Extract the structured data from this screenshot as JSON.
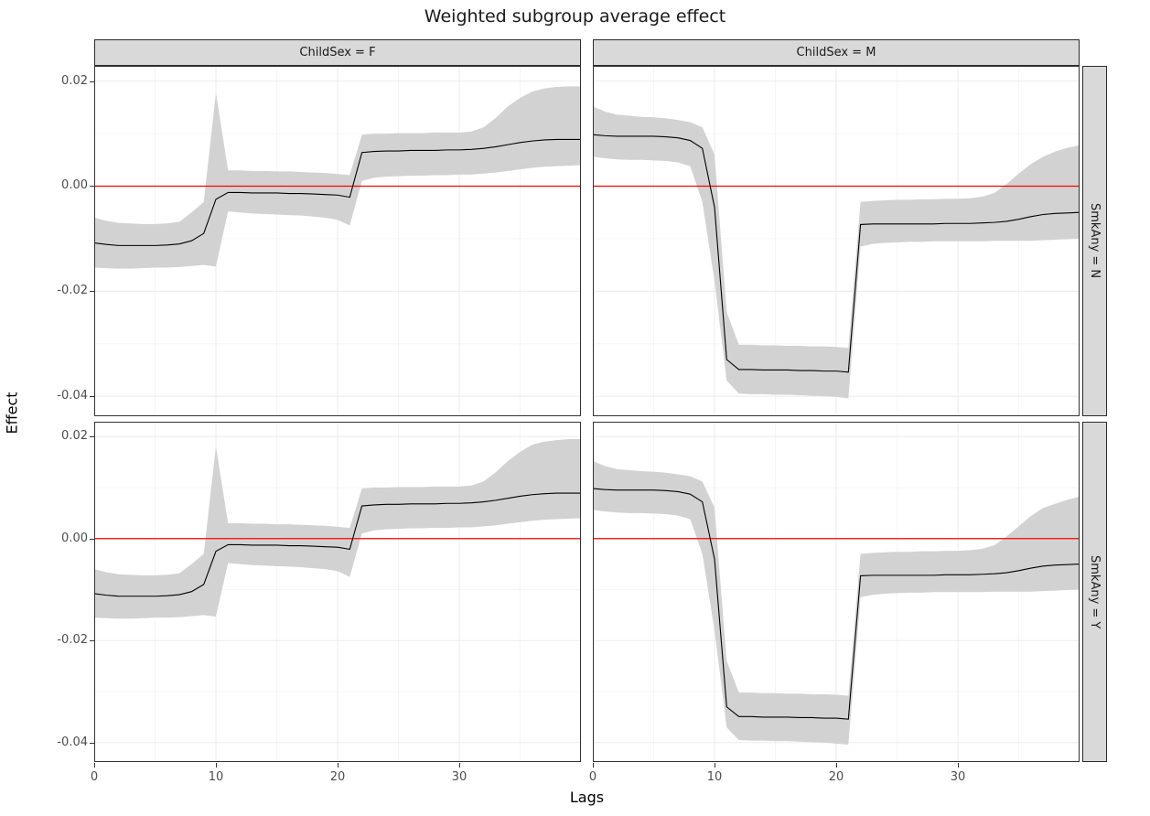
{
  "chart_data": {
    "type": "area",
    "title": "Weighted subgroup average effect",
    "xlabel": "Lags",
    "ylabel": "Effect",
    "xlim": [
      0,
      40
    ],
    "ylim": [
      -0.0438,
      0.0229
    ],
    "x_tick_values": [
      0,
      10,
      20,
      30
    ],
    "x_tick_labels": [
      "0",
      "10",
      "20",
      "30"
    ],
    "y_tick_values": [
      0.02,
      0.0,
      -0.02,
      -0.04
    ],
    "y_tick_labels": [
      "0.02",
      "0.00",
      "-0.02",
      "-0.04"
    ],
    "grid_minor_x": [
      5,
      15,
      25,
      35
    ],
    "grid_minor_y": [
      0.01,
      -0.01,
      -0.03
    ],
    "grid_on": true,
    "ref_line_y": 0,
    "colors": {
      "line": "#000000",
      "ribbon": "#d2d2d2",
      "ref_line": "#ff0000",
      "strip_bg": "#d9d9d9",
      "panel_border": "#333333",
      "grid_major": "#ebebeb",
      "grid_minor": "#f5f5f5",
      "tick_text": "#4d4d4d"
    },
    "facets": {
      "col_labels": [
        "ChildSex = F",
        "ChildSex = M"
      ],
      "row_labels": [
        "SmkAny = N",
        "SmkAny = Y"
      ]
    },
    "lags": [
      0,
      1,
      2,
      3,
      4,
      5,
      6,
      7,
      8,
      9,
      10,
      11,
      12,
      13,
      14,
      15,
      16,
      17,
      18,
      19,
      20,
      21,
      22,
      23,
      24,
      25,
      26,
      27,
      28,
      29,
      30,
      31,
      32,
      33,
      34,
      35,
      36,
      37,
      38,
      39,
      40
    ],
    "panels": [
      {
        "col": "ChildSex = F",
        "row": "SmkAny = N",
        "est": [
          -0.0108,
          -0.0111,
          -0.0113,
          -0.0113,
          -0.0113,
          -0.0113,
          -0.0112,
          -0.011,
          -0.0104,
          -0.009,
          -0.0025,
          -0.0012,
          -0.0012,
          -0.0013,
          -0.0013,
          -0.0013,
          -0.0014,
          -0.0014,
          -0.0015,
          -0.0016,
          -0.0017,
          -0.0021,
          0.0064,
          0.0066,
          0.0067,
          0.0067,
          0.0068,
          0.0068,
          0.0068,
          0.0069,
          0.0069,
          0.007,
          0.0072,
          0.0075,
          0.0079,
          0.0083,
          0.0086,
          0.0088,
          0.0089,
          0.0089,
          0.0089
        ],
        "lo": [
          -0.0155,
          -0.0156,
          -0.0157,
          -0.0157,
          -0.0156,
          -0.0155,
          -0.0155,
          -0.0154,
          -0.0152,
          -0.015,
          -0.0153,
          -0.0048,
          -0.005,
          -0.0052,
          -0.0053,
          -0.0054,
          -0.0055,
          -0.0056,
          -0.0058,
          -0.006,
          -0.0064,
          -0.0075,
          0.001,
          0.0016,
          0.0018,
          0.0019,
          0.002,
          0.002,
          0.0021,
          0.0021,
          0.0022,
          0.0022,
          0.0024,
          0.0026,
          0.0029,
          0.0032,
          0.0035,
          0.0037,
          0.0038,
          0.0039,
          0.004
        ],
        "hi": [
          -0.006,
          -0.0066,
          -0.007,
          -0.0071,
          -0.0072,
          -0.0072,
          -0.0071,
          -0.0068,
          -0.005,
          -0.003,
          0.0178,
          0.003,
          0.003,
          0.0029,
          0.0029,
          0.0028,
          0.0028,
          0.0027,
          0.0026,
          0.0025,
          0.0023,
          0.0021,
          0.0098,
          0.01,
          0.01,
          0.0101,
          0.0101,
          0.0101,
          0.0102,
          0.0102,
          0.0102,
          0.0104,
          0.0112,
          0.013,
          0.0152,
          0.0168,
          0.018,
          0.0186,
          0.0189,
          0.019,
          0.019
        ]
      },
      {
        "col": "ChildSex = M",
        "row": "SmkAny = N",
        "est": [
          0.0098,
          0.0096,
          0.0095,
          0.0095,
          0.0095,
          0.0095,
          0.0094,
          0.0092,
          0.0087,
          0.0072,
          -0.004,
          -0.033,
          -0.0349,
          -0.0349,
          -0.035,
          -0.035,
          -0.035,
          -0.0351,
          -0.0351,
          -0.0352,
          -0.0352,
          -0.0354,
          -0.0073,
          -0.0072,
          -0.0072,
          -0.0072,
          -0.0072,
          -0.0072,
          -0.0072,
          -0.0071,
          -0.0071,
          -0.0071,
          -0.007,
          -0.0069,
          -0.0067,
          -0.0063,
          -0.0058,
          -0.0054,
          -0.0052,
          -0.0051,
          -0.005
        ],
        "lo": [
          0.0056,
          0.0053,
          0.0051,
          0.005,
          0.005,
          0.0049,
          0.0048,
          0.0045,
          0.0038,
          -0.003,
          -0.018,
          -0.037,
          -0.0395,
          -0.0396,
          -0.0396,
          -0.0397,
          -0.0397,
          -0.0398,
          -0.0399,
          -0.04,
          -0.0401,
          -0.0404,
          -0.0115,
          -0.011,
          -0.0108,
          -0.0107,
          -0.0106,
          -0.0106,
          -0.0105,
          -0.0105,
          -0.0105,
          -0.0105,
          -0.0105,
          -0.0104,
          -0.0104,
          -0.0104,
          -0.0104,
          -0.0103,
          -0.0102,
          -0.0101,
          -0.01
        ],
        "hi": [
          0.0152,
          0.0142,
          0.0136,
          0.0134,
          0.0132,
          0.0131,
          0.0129,
          0.0126,
          0.0122,
          0.0112,
          0.006,
          -0.024,
          -0.0302,
          -0.0302,
          -0.0303,
          -0.0303,
          -0.0304,
          -0.0304,
          -0.0305,
          -0.0305,
          -0.0306,
          -0.0308,
          -0.003,
          -0.0028,
          -0.0027,
          -0.0026,
          -0.0026,
          -0.0025,
          -0.0025,
          -0.0024,
          -0.0024,
          -0.0023,
          -0.002,
          -0.0013,
          0.0004,
          0.0024,
          0.0042,
          0.0056,
          0.0066,
          0.0073,
          0.0078
        ]
      },
      {
        "col": "ChildSex = F",
        "row": "SmkAny = Y",
        "est": [
          -0.0108,
          -0.0111,
          -0.0113,
          -0.0113,
          -0.0113,
          -0.0113,
          -0.0112,
          -0.011,
          -0.0104,
          -0.009,
          -0.0025,
          -0.0012,
          -0.0012,
          -0.0013,
          -0.0013,
          -0.0013,
          -0.0014,
          -0.0014,
          -0.0015,
          -0.0016,
          -0.0017,
          -0.0021,
          0.0064,
          0.0066,
          0.0067,
          0.0067,
          0.0068,
          0.0068,
          0.0068,
          0.0069,
          0.0069,
          0.007,
          0.0072,
          0.0075,
          0.0079,
          0.0083,
          0.0086,
          0.0088,
          0.0089,
          0.0089,
          0.0089
        ],
        "lo": [
          -0.0155,
          -0.0156,
          -0.0157,
          -0.0157,
          -0.0156,
          -0.0155,
          -0.0155,
          -0.0154,
          -0.0152,
          -0.015,
          -0.0153,
          -0.0048,
          -0.005,
          -0.0052,
          -0.0053,
          -0.0054,
          -0.0055,
          -0.0056,
          -0.0058,
          -0.006,
          -0.0064,
          -0.0075,
          0.001,
          0.0016,
          0.0018,
          0.0019,
          0.002,
          0.002,
          0.0021,
          0.0021,
          0.0022,
          0.0022,
          0.0024,
          0.0026,
          0.0029,
          0.0032,
          0.0035,
          0.0037,
          0.0038,
          0.0039,
          0.004
        ],
        "hi": [
          -0.006,
          -0.0066,
          -0.007,
          -0.0071,
          -0.0072,
          -0.0072,
          -0.0071,
          -0.0068,
          -0.005,
          -0.003,
          0.0181,
          0.003,
          0.003,
          0.0029,
          0.0029,
          0.0028,
          0.0028,
          0.0027,
          0.0026,
          0.0025,
          0.0023,
          0.0021,
          0.0098,
          0.01,
          0.01,
          0.0101,
          0.0101,
          0.0101,
          0.0102,
          0.0102,
          0.0102,
          0.0104,
          0.0112,
          0.013,
          0.0152,
          0.017,
          0.0184,
          0.019,
          0.0193,
          0.0195,
          0.0195
        ]
      },
      {
        "col": "ChildSex = M",
        "row": "SmkAny = Y",
        "est": [
          0.0098,
          0.0096,
          0.0095,
          0.0095,
          0.0095,
          0.0095,
          0.0094,
          0.0092,
          0.0087,
          0.0072,
          -0.004,
          -0.033,
          -0.0349,
          -0.0349,
          -0.035,
          -0.035,
          -0.035,
          -0.0351,
          -0.0351,
          -0.0352,
          -0.0352,
          -0.0354,
          -0.0073,
          -0.0072,
          -0.0072,
          -0.0072,
          -0.0072,
          -0.0072,
          -0.0072,
          -0.0071,
          -0.0071,
          -0.0071,
          -0.007,
          -0.0069,
          -0.0067,
          -0.0063,
          -0.0058,
          -0.0054,
          -0.0052,
          -0.0051,
          -0.005
        ],
        "lo": [
          0.0056,
          0.0053,
          0.0051,
          0.005,
          0.005,
          0.0049,
          0.0048,
          0.0045,
          0.0038,
          -0.003,
          -0.018,
          -0.037,
          -0.0395,
          -0.0396,
          -0.0396,
          -0.0397,
          -0.0397,
          -0.0398,
          -0.0399,
          -0.04,
          -0.0402,
          -0.0404,
          -0.0115,
          -0.011,
          -0.0108,
          -0.0107,
          -0.0106,
          -0.0106,
          -0.0105,
          -0.0105,
          -0.0105,
          -0.0105,
          -0.0105,
          -0.0104,
          -0.0104,
          -0.0104,
          -0.0104,
          -0.0103,
          -0.0102,
          -0.0101,
          -0.01
        ],
        "hi": [
          0.0152,
          0.0142,
          0.0136,
          0.0134,
          0.0132,
          0.0131,
          0.0129,
          0.0126,
          0.0122,
          0.0112,
          0.006,
          -0.024,
          -0.0302,
          -0.0302,
          -0.0303,
          -0.0303,
          -0.0304,
          -0.0304,
          -0.0305,
          -0.0305,
          -0.0306,
          -0.0308,
          -0.003,
          -0.0028,
          -0.0027,
          -0.0026,
          -0.0026,
          -0.0025,
          -0.0025,
          -0.0024,
          -0.0024,
          -0.0023,
          -0.002,
          -0.0013,
          0.0004,
          0.0024,
          0.0044,
          0.006,
          0.0068,
          0.0076,
          0.0082
        ]
      }
    ]
  }
}
